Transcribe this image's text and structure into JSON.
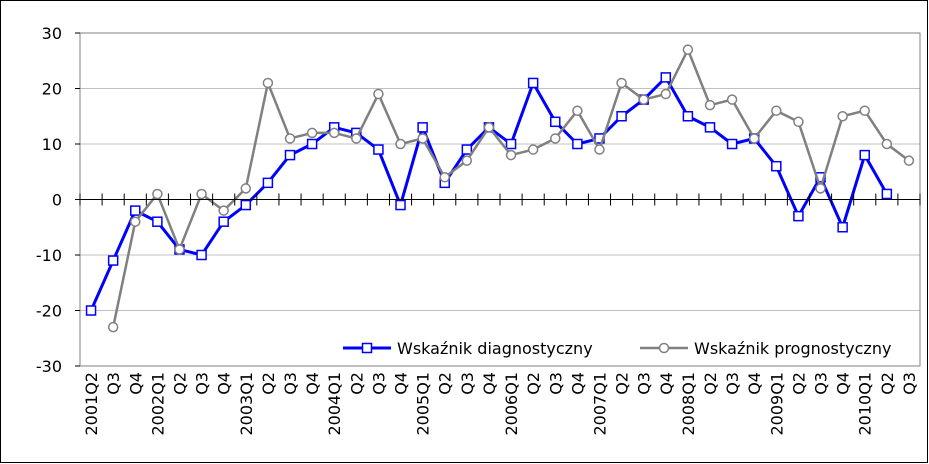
{
  "chart_data": {
    "type": "line",
    "categories": [
      "2001Q2",
      "Q3",
      "Q4",
      "2002Q1",
      "Q2",
      "Q3",
      "Q4",
      "2003Q1",
      "Q2",
      "Q3",
      "Q4",
      "2004Q1",
      "Q2",
      "Q3",
      "Q4",
      "2005Q1",
      "Q2",
      "Q3",
      "Q4",
      "2006Q1",
      "Q2",
      "Q3",
      "Q4",
      "2007Q1",
      "Q2",
      "Q3",
      "Q4",
      "2008Q1",
      "Q2",
      "Q3",
      "Q4",
      "2009Q1",
      "Q2",
      "Q3",
      "Q4",
      "2010Q1",
      "Q2",
      "Q3"
    ],
    "series": [
      {
        "name": "Wskaźnik diagnostyczny",
        "color": "#0000ff",
        "marker": "square",
        "values": [
          -20,
          -11,
          -2,
          -4,
          -9,
          -10,
          -4,
          -1,
          3,
          8,
          10,
          13,
          12,
          9,
          -1,
          13,
          3,
          9,
          13,
          10,
          21,
          14,
          10,
          11,
          15,
          18,
          22,
          15,
          13,
          10,
          11,
          6,
          -3,
          4,
          -5,
          8,
          1,
          null
        ]
      },
      {
        "name": "Wskaźnik prognostyczny",
        "color": "#808080",
        "marker": "circle",
        "values": [
          null,
          -23,
          -4,
          1,
          -9,
          1,
          -2,
          2,
          21,
          11,
          12,
          12,
          11,
          19,
          10,
          11,
          4,
          7,
          13,
          8,
          9,
          11,
          16,
          9,
          21,
          18,
          19,
          27,
          17,
          18,
          11,
          16,
          14,
          2,
          15,
          16,
          10,
          7
        ]
      }
    ],
    "ylim": [
      -30,
      30
    ],
    "yticks": [
      -30,
      -20,
      -10,
      0,
      10,
      20,
      30
    ],
    "grid": true
  }
}
